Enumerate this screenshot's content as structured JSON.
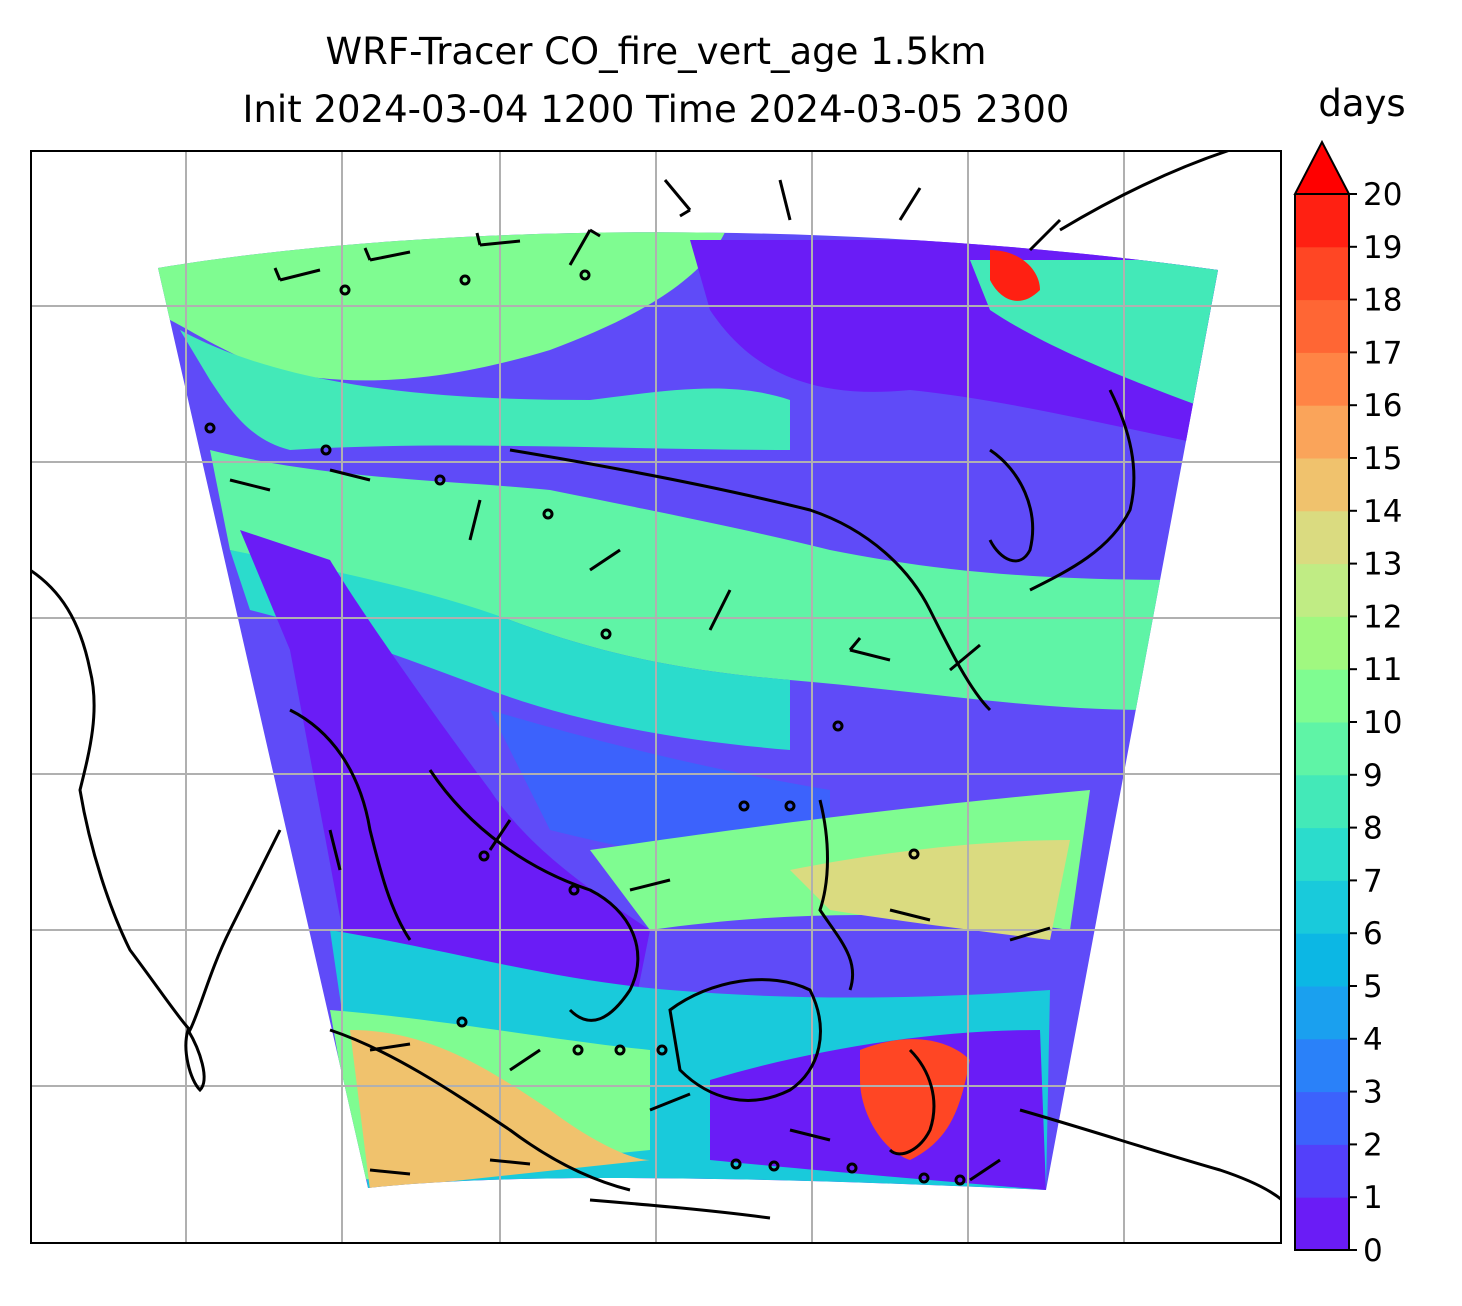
{
  "title_line1": "WRF-Tracer CO_fire_vert_age 1.5km",
  "title_line2": "Init 2024-03-04 1200 Time 2024-03-05 2300",
  "colorbar": {
    "unit": "days",
    "min": 0,
    "max": 20,
    "extend": "max",
    "ticks": [
      "0",
      "1",
      "2",
      "3",
      "4",
      "5",
      "6",
      "7",
      "8",
      "9",
      "10",
      "11",
      "12",
      "13",
      "14",
      "15",
      "16",
      "17",
      "18",
      "19",
      "20"
    ],
    "colors": [
      "#6a1cf6",
      "#5340fa",
      "#3c62fc",
      "#2a81f9",
      "#1aa0ef",
      "#0cb7e4",
      "#19cadb",
      "#2bdccc",
      "#43e9b8",
      "#5ff4a6",
      "#7ffc91",
      "#a0f880",
      "#c0ec84",
      "#dadb80",
      "#f0c26d",
      "#faa45a",
      "#ff8445",
      "#ff6634",
      "#ff4624",
      "#ff2012",
      "#ff0000"
    ]
  },
  "map": {
    "gridlines": true,
    "coastlines": true,
    "wind_barbs": true,
    "field": "CO_fire_vert_age"
  }
}
